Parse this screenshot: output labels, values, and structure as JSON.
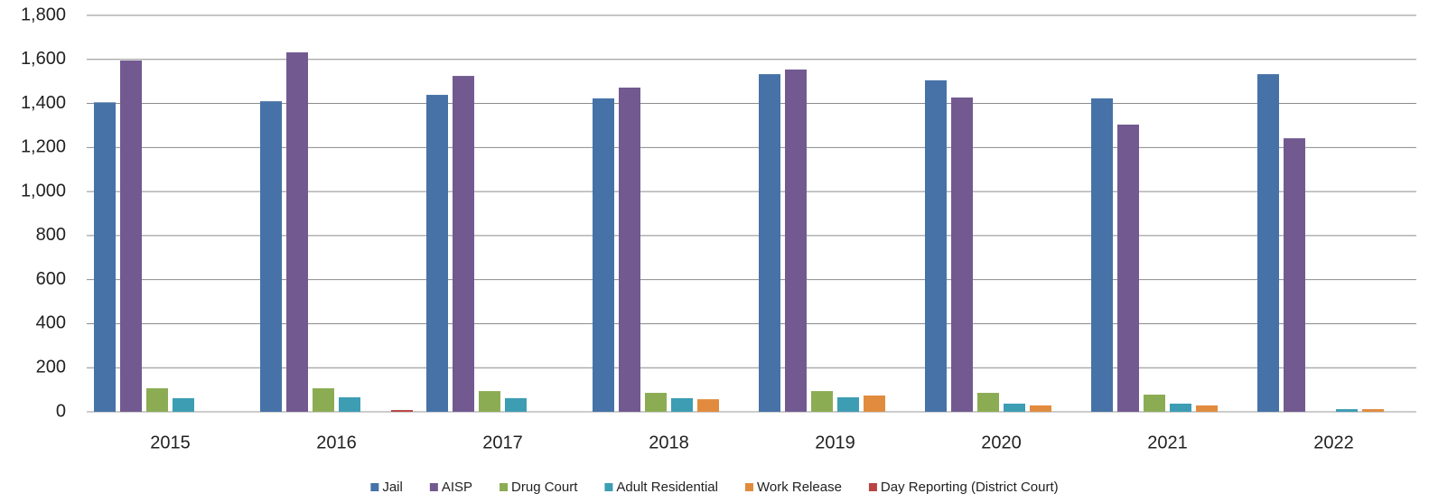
{
  "chart_data": {
    "type": "bar",
    "categories": [
      "2015",
      "2016",
      "2017",
      "2018",
      "2019",
      "2020",
      "2021",
      "2022"
    ],
    "series": [
      {
        "name": "Jail",
        "color": "#4672a7",
        "values": [
          1405,
          1410,
          1439,
          1423,
          1533,
          1505,
          1423,
          1533
        ]
      },
      {
        "name": "AISP",
        "color": "#725a91",
        "values": [
          1595,
          1632,
          1525,
          1472,
          1554,
          1427,
          1304,
          1242
        ]
      },
      {
        "name": "Drug Court",
        "color": "#8cac54",
        "values": [
          107,
          107,
          94,
          86,
          94,
          86,
          78,
          0
        ]
      },
      {
        "name": "Adult Residential",
        "color": "#3d9db3",
        "values": [
          62,
          66,
          62,
          62,
          66,
          37,
          37,
          12
        ]
      },
      {
        "name": "Work Release",
        "color": "#e18b3e",
        "values": [
          0,
          0,
          0,
          57,
          74,
          29,
          29,
          12
        ]
      },
      {
        "name": "Day Reporting (District Court)",
        "color": "#b84444",
        "values": [
          0,
          8,
          0,
          0,
          0,
          0,
          0,
          0
        ]
      }
    ],
    "ylim": [
      0,
      1800
    ],
    "yticks": [
      0,
      200,
      400,
      600,
      800,
      {
        "value": 1000,
        "label": "1,000"
      },
      {
        "value": 1200,
        "label": "1,200"
      },
      {
        "value": 1400,
        "label": "1,400"
      },
      {
        "value": 1600,
        "label": "1,600"
      },
      {
        "value": 1800,
        "label": "1,800"
      }
    ],
    "grid": true,
    "legend": "bottom"
  }
}
